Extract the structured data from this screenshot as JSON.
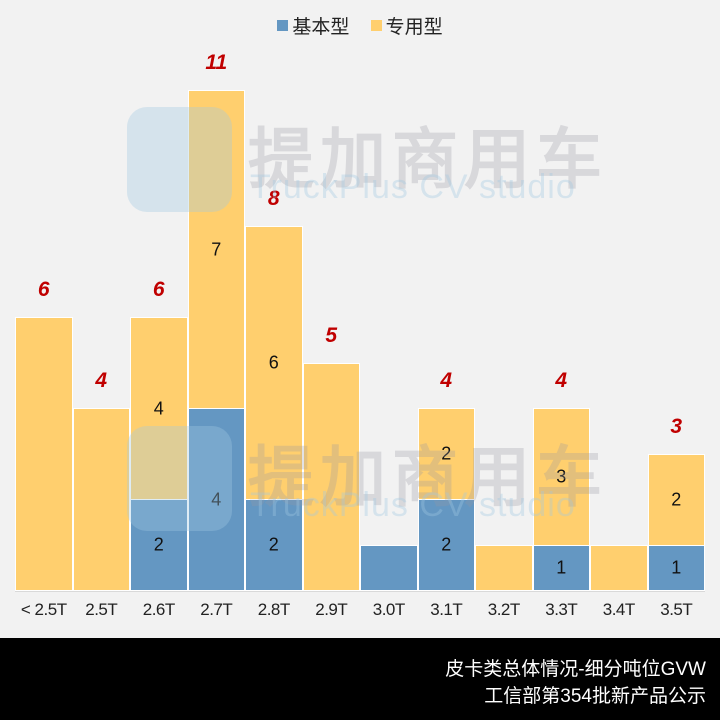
{
  "legend": [
    {
      "label": "基本型",
      "color": "#6497c2"
    },
    {
      "label": "专用型",
      "color": "#ffcf6e"
    }
  ],
  "watermark": {
    "cn": "提加商用车",
    "en": "TruckPlus CV studio"
  },
  "footer": {
    "line1": "皮卡类总体情况-细分吨位GVW",
    "line2": "工信部第354批新产品公示"
  },
  "chart_data": {
    "type": "bar",
    "stacked": true,
    "title": "皮卡类总体情况-细分吨位GVW",
    "subtitle": "工信部第354批新产品公示",
    "xlabel": "",
    "ylabel": "",
    "ylim": [
      0,
      11
    ],
    "grid": false,
    "legend_position": "top",
    "categories": [
      "< 2.5T",
      "2.5T",
      "2.6T",
      "2.7T",
      "2.8T",
      "2.9T",
      "3.0T",
      "3.1T",
      "3.2T",
      "3.3T",
      "3.4T",
      "3.5T"
    ],
    "series": [
      {
        "name": "基本型",
        "color": "#6497c2",
        "values": [
          0,
          0,
          2,
          4,
          2,
          0,
          1,
          2,
          0,
          1,
          0,
          1
        ],
        "labels": [
          "",
          "",
          "2",
          "4",
          "2",
          "",
          "",
          "2",
          "",
          "1",
          "",
          "1"
        ]
      },
      {
        "name": "专用型",
        "color": "#ffcf6e",
        "values": [
          6,
          4,
          4,
          7,
          6,
          5,
          0,
          2,
          1,
          3,
          1,
          2
        ],
        "labels": [
          "",
          "",
          "4",
          "7",
          "6",
          "",
          "",
          "2",
          "",
          "3",
          "",
          "2"
        ]
      }
    ],
    "totals": [
      6,
      4,
      6,
      11,
      8,
      5,
      1,
      4,
      1,
      4,
      1,
      3
    ],
    "total_labels": [
      "6",
      "4",
      "6",
      "11",
      "8",
      "5",
      "",
      "4",
      "",
      "4",
      "",
      "3"
    ],
    "total_label_color": "#c00000"
  }
}
